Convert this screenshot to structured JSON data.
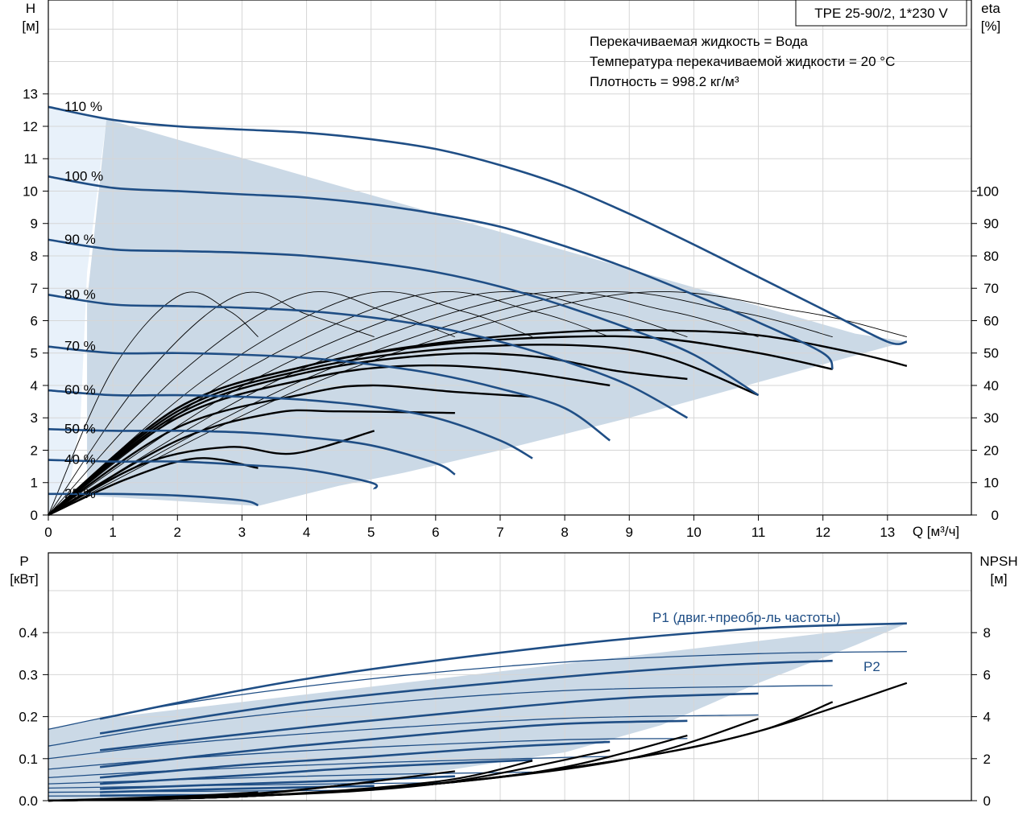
{
  "colors": {
    "background": "#ffffff",
    "grid": "#d6d6d6",
    "frame": "#000000",
    "curve_blue": "#1f4e85",
    "curve_black": "#000000",
    "fill_region": "#cbd9e6",
    "fill_light": "#e8f1fa",
    "annotation_blue": "#1f4e85"
  },
  "chart_data": [
    {
      "type": "line",
      "id": "qh",
      "title": "TPE 25-90/2, 1*230 V",
      "notes": [
        "Перекачиваемая жидкость = Вода",
        "Температура перекачиваемой жидкости = 20 °C",
        "Плотность = 998.2 кг/м³"
      ],
      "ylabel": [
        "H",
        "[м]"
      ],
      "y2label": [
        "eta",
        "[%]"
      ],
      "xlabel": "Q [м³/ч]",
      "xlim": [
        0,
        14.3
      ],
      "ylim": [
        0,
        15.9
      ],
      "y2lim": [
        0,
        159
      ],
      "xticks": [
        "0",
        "1",
        "2",
        "3",
        "4",
        "5",
        "6",
        "7",
        "8",
        "9",
        "10",
        "11",
        "12",
        "13"
      ],
      "yticks": [
        "0",
        "1",
        "2",
        "3",
        "4",
        "5",
        "6",
        "7",
        "8",
        "9",
        "10",
        "11",
        "12",
        "13"
      ],
      "y2ticks": [
        "0",
        "10",
        "20",
        "30",
        "40",
        "50",
        "60",
        "70",
        "80",
        "90",
        "100"
      ],
      "grid": true,
      "region": [
        [
          0.0,
          12.6
        ],
        [
          0.9,
          12.22
        ],
        [
          12.5,
          5.6
        ],
        [
          13.3,
          5.35
        ],
        [
          13.0,
          5.2
        ],
        [
          9.0,
          3.0
        ],
        [
          7.0,
          2.0
        ],
        [
          5.5,
          1.3
        ],
        [
          4.5,
          0.9
        ],
        [
          3.25,
          0.28
        ],
        [
          0.6,
          0.6
        ],
        [
          0.6,
          6.6
        ],
        [
          0.9,
          12.22
        ]
      ],
      "light_region": [
        [
          0.0,
          12.6
        ],
        [
          0.9,
          12.22
        ],
        [
          0.6,
          7.5
        ],
        [
          0.5,
          3.0
        ],
        [
          0.3,
          0.5
        ],
        [
          0.0,
          0.0
        ]
      ],
      "series": [
        {
          "name": "110 %",
          "qmax": 13.3,
          "x": [
            0,
            1,
            2,
            3,
            4,
            5,
            6,
            7,
            8,
            9,
            10,
            11,
            12,
            13,
            13.3
          ],
          "values": [
            12.6,
            12.2,
            12.0,
            11.9,
            11.8,
            11.6,
            11.3,
            10.8,
            10.15,
            9.3,
            8.35,
            7.35,
            6.35,
            5.35,
            5.35
          ]
        },
        {
          "name": "100 %",
          "qmax": 12.15,
          "x": [
            0,
            1,
            2,
            3,
            4,
            5,
            6,
            7,
            8,
            9,
            10,
            11,
            12,
            12.15
          ],
          "values": [
            10.45,
            10.1,
            10.0,
            9.9,
            9.8,
            9.6,
            9.3,
            8.9,
            8.3,
            7.6,
            6.8,
            5.95,
            5.0,
            4.5
          ]
        },
        {
          "name": "90 %",
          "qmax": 11.0,
          "x": [
            0,
            1,
            2,
            3,
            4,
            5,
            6,
            7,
            8,
            9,
            10,
            11
          ],
          "values": [
            8.5,
            8.2,
            8.15,
            8.1,
            8.0,
            7.8,
            7.5,
            7.05,
            6.45,
            5.75,
            4.95,
            3.7
          ]
        },
        {
          "name": "80 %",
          "qmax": 9.9,
          "x": [
            0,
            1,
            2,
            3,
            4,
            5,
            6,
            7,
            8,
            9,
            9.9
          ],
          "values": [
            6.8,
            6.5,
            6.45,
            6.4,
            6.3,
            6.1,
            5.8,
            5.35,
            4.75,
            4.0,
            3.0
          ]
        },
        {
          "name": "70 %",
          "qmax": 8.7,
          "x": [
            0,
            1,
            2,
            3,
            4,
            5,
            6,
            7,
            8,
            8.7
          ],
          "values": [
            5.2,
            5.0,
            5.0,
            4.95,
            4.85,
            4.65,
            4.35,
            3.9,
            3.3,
            2.3
          ]
        },
        {
          "name": "60 %",
          "qmax": 7.5,
          "x": [
            0,
            1,
            2,
            3,
            4,
            5,
            6,
            7,
            7.5
          ],
          "values": [
            3.85,
            3.7,
            3.7,
            3.65,
            3.55,
            3.35,
            3.0,
            2.3,
            1.75
          ]
        },
        {
          "name": "50 %",
          "qmax": 6.3,
          "x": [
            0,
            1,
            2,
            3,
            4,
            5,
            6,
            6.3
          ],
          "values": [
            2.65,
            2.6,
            2.6,
            2.55,
            2.4,
            2.15,
            1.6,
            1.25
          ]
        },
        {
          "name": "40 %",
          "qmax": 5.05,
          "x": [
            0,
            1,
            2,
            3,
            4,
            5,
            5.05
          ],
          "values": [
            1.7,
            1.65,
            1.65,
            1.55,
            1.4,
            1.0,
            0.8
          ]
        },
        {
          "name": "25 %",
          "qmax": 3.25,
          "x": [
            0,
            1,
            2,
            3,
            3.25
          ],
          "values": [
            0.65,
            0.65,
            0.6,
            0.45,
            0.3
          ]
        }
      ],
      "efficiency_series": [
        {
          "name": "110 %",
          "x": [
            0,
            2,
            4,
            6,
            8,
            9.5,
            11,
            12.5,
            13.3
          ],
          "values": [
            0,
            33,
            46,
            53,
            56.5,
            57,
            55.5,
            50,
            46
          ]
        },
        {
          "name": "100 %",
          "x": [
            0,
            2,
            4,
            6,
            8,
            9.5,
            11,
            12.15
          ],
          "values": [
            0,
            33,
            46,
            52.5,
            55,
            54.5,
            50,
            45
          ]
        },
        {
          "name": "90 %",
          "x": [
            0,
            2,
            4,
            6,
            8,
            9.5,
            11
          ],
          "values": [
            0,
            32,
            45,
            51,
            52.5,
            49,
            37
          ]
        },
        {
          "name": "80 %",
          "x": [
            0,
            2,
            4,
            6,
            7.5,
            8.8,
            9.9
          ],
          "values": [
            0,
            31,
            44,
            49.5,
            49,
            44.5,
            42
          ]
        },
        {
          "name": "70 %",
          "x": [
            0,
            2,
            4,
            5.5,
            7,
            8.7
          ],
          "values": [
            0,
            30,
            42,
            46,
            45,
            40
          ]
        },
        {
          "name": "60 %",
          "x": [
            0,
            2,
            4,
            5,
            6.3,
            7.5
          ],
          "values": [
            0,
            27,
            37.5,
            40,
            38,
            36.5
          ]
        },
        {
          "name": "50 %",
          "x": [
            0,
            2,
            3.5,
            4.5,
            6.3
          ],
          "values": [
            0,
            23,
            31.5,
            32,
            31.5
          ]
        },
        {
          "name": "40 %",
          "x": [
            0,
            1.5,
            2.8,
            3.8,
            5.05
          ],
          "values": [
            0,
            16,
            21,
            19,
            26
          ]
        },
        {
          "name": "25 %",
          "x": [
            0,
            1.2,
            2.3,
            3.25
          ],
          "values": [
            0,
            11,
            17.5,
            14.5
          ]
        }
      ],
      "efficiency_arcs": [
        {
          "x": [
            0,
            1.0,
            2.05,
            2.8,
            3.25
          ],
          "values": [
            0,
            45,
            68,
            63,
            55
          ]
        },
        {
          "x": [
            0,
            1.5,
            2.95,
            4.0,
            5.05
          ],
          "values": [
            0,
            43,
            68,
            62,
            55
          ]
        },
        {
          "x": [
            0,
            2.0,
            3.9,
            5.2,
            6.3
          ],
          "values": [
            0,
            43,
            68,
            63,
            55
          ]
        },
        {
          "x": [
            0,
            2.5,
            4.85,
            6.4,
            7.5
          ],
          "values": [
            0,
            43,
            68,
            63,
            55
          ]
        },
        {
          "x": [
            0,
            2.9,
            5.75,
            7.5,
            8.7
          ],
          "values": [
            0,
            43,
            68,
            63,
            55
          ]
        },
        {
          "x": [
            0,
            3.3,
            6.6,
            8.6,
            9.9
          ],
          "values": [
            0,
            43,
            68,
            63,
            55
          ]
        },
        {
          "x": [
            0,
            3.7,
            7.4,
            9.6,
            11.0
          ],
          "values": [
            0,
            43,
            68,
            63,
            55
          ]
        },
        {
          "x": [
            0,
            4.1,
            8.1,
            10.6,
            12.15
          ],
          "values": [
            0,
            43,
            68,
            63,
            55
          ]
        },
        {
          "x": [
            0,
            4.4,
            8.8,
            11.6,
            13.3
          ],
          "values": [
            0,
            43,
            68,
            63,
            55
          ]
        }
      ]
    },
    {
      "type": "line",
      "id": "power",
      "ylabel": [
        "P",
        "[кВт]"
      ],
      "y2label": [
        "NPSH",
        "[м]"
      ],
      "xlim": [
        0,
        14.3
      ],
      "ylim": [
        0,
        0.59
      ],
      "y2lim": [
        0,
        11.8
      ],
      "yticks": [
        "0.0",
        "0.1",
        "0.2",
        "0.3",
        "0.4"
      ],
      "y2ticks": [
        "0",
        "2",
        "4",
        "6",
        "8"
      ],
      "grid": true,
      "series_labels": {
        "p1": "P1 (двиг.+преобр-ль частоты)",
        "p2": "P2"
      },
      "region": [
        [
          0.0,
          0.17
        ],
        [
          0.8,
          0.195
        ],
        [
          13.3,
          0.422
        ],
        [
          12.5,
          0.37
        ],
        [
          11.0,
          0.28
        ],
        [
          9.5,
          0.18
        ],
        [
          8.0,
          0.115
        ],
        [
          6.5,
          0.08
        ],
        [
          5.2,
          0.05
        ],
        [
          4.0,
          0.03
        ],
        [
          3.0,
          0.015
        ],
        [
          0.0,
          0.0
        ]
      ],
      "p1": [
        {
          "x": [
            0.8,
            4,
            8,
            11,
            13.3
          ],
          "values": [
            0.195,
            0.29,
            0.37,
            0.41,
            0.422
          ]
        },
        {
          "x": [
            0.8,
            4,
            8,
            10.5,
            12.15
          ],
          "values": [
            0.16,
            0.235,
            0.295,
            0.323,
            0.333
          ]
        },
        {
          "x": [
            0.8,
            4,
            7,
            9,
            11.0
          ],
          "values": [
            0.12,
            0.175,
            0.22,
            0.245,
            0.255
          ]
        },
        {
          "x": [
            0.8,
            3.5,
            6,
            8,
            9.9
          ],
          "values": [
            0.08,
            0.125,
            0.16,
            0.183,
            0.19
          ]
        },
        {
          "x": [
            0.8,
            3,
            5,
            7,
            8.7
          ],
          "values": [
            0.055,
            0.085,
            0.105,
            0.127,
            0.14
          ]
        },
        {
          "x": [
            0.8,
            3,
            5,
            7.5
          ],
          "values": [
            0.04,
            0.06,
            0.08,
            0.097
          ]
        },
        {
          "x": [
            0.8,
            3,
            5,
            6.3
          ],
          "values": [
            0.028,
            0.04,
            0.05,
            0.058
          ]
        },
        {
          "x": [
            0.8,
            2.5,
            4,
            5.05
          ],
          "values": [
            0.02,
            0.027,
            0.032,
            0.035
          ]
        },
        {
          "x": [
            0.8,
            2,
            3.25
          ],
          "values": [
            0.012,
            0.013,
            0.013
          ]
        }
      ],
      "p2": [
        {
          "x": [
            0,
            2,
            5,
            8,
            11,
            13.3
          ],
          "values": [
            0.17,
            0.23,
            0.29,
            0.33,
            0.35,
            0.355
          ]
        },
        {
          "x": [
            0,
            2,
            5,
            8,
            11,
            12.15
          ],
          "values": [
            0.13,
            0.18,
            0.23,
            0.262,
            0.272,
            0.274
          ]
        },
        {
          "x": [
            0,
            2,
            5,
            8,
            11.0
          ],
          "values": [
            0.1,
            0.135,
            0.17,
            0.196,
            0.204
          ]
        },
        {
          "x": [
            0,
            2,
            5,
            8,
            9.9
          ],
          "values": [
            0.075,
            0.1,
            0.127,
            0.145,
            0.148
          ]
        },
        {
          "x": [
            0,
            2,
            5,
            8,
            8.7
          ],
          "values": [
            0.055,
            0.072,
            0.09,
            0.103,
            0.105
          ]
        },
        {
          "x": [
            0,
            2,
            5,
            7.5
          ],
          "values": [
            0.04,
            0.05,
            0.062,
            0.068
          ]
        },
        {
          "x": [
            0,
            2,
            5,
            6.3
          ],
          "values": [
            0.03,
            0.035,
            0.041,
            0.043
          ]
        },
        {
          "x": [
            0,
            2,
            4,
            5.05
          ],
          "values": [
            0.02,
            0.022,
            0.024,
            0.025
          ]
        },
        {
          "x": [
            0,
            2,
            3.25
          ],
          "values": [
            0.011,
            0.012,
            0.012
          ]
        }
      ],
      "npsh": [
        {
          "x": [
            0,
            3,
            6,
            9,
            11,
            13.3
          ],
          "values": [
            0.0,
            0.2,
            0.8,
            2.0,
            3.3,
            5.6
          ]
        },
        {
          "x": [
            0,
            3,
            6,
            9,
            11,
            12.15
          ],
          "values": [
            0.0,
            0.2,
            0.8,
            2.0,
            3.3,
            4.7
          ]
        },
        {
          "x": [
            0,
            3,
            6,
            9,
            11.0
          ],
          "values": [
            0.0,
            0.2,
            0.8,
            2.0,
            3.9
          ]
        },
        {
          "x": [
            0,
            3,
            6,
            8,
            9.9
          ],
          "values": [
            0.0,
            0.2,
            0.8,
            1.6,
            3.1
          ]
        },
        {
          "x": [
            0,
            3,
            6,
            8.7
          ],
          "values": [
            0.0,
            0.2,
            0.8,
            2.4
          ]
        },
        {
          "x": [
            0,
            3,
            6,
            7.5
          ],
          "values": [
            0.0,
            0.2,
            0.9,
            1.9
          ]
        },
        {
          "x": [
            0,
            3,
            6.3
          ],
          "values": [
            0.0,
            0.25,
            1.4
          ]
        },
        {
          "x": [
            0,
            3,
            5.05
          ],
          "values": [
            0.0,
            0.3,
            0.9
          ]
        },
        {
          "x": [
            0,
            2,
            3.25
          ],
          "values": [
            0.0,
            0.2,
            0.4
          ]
        }
      ]
    }
  ]
}
